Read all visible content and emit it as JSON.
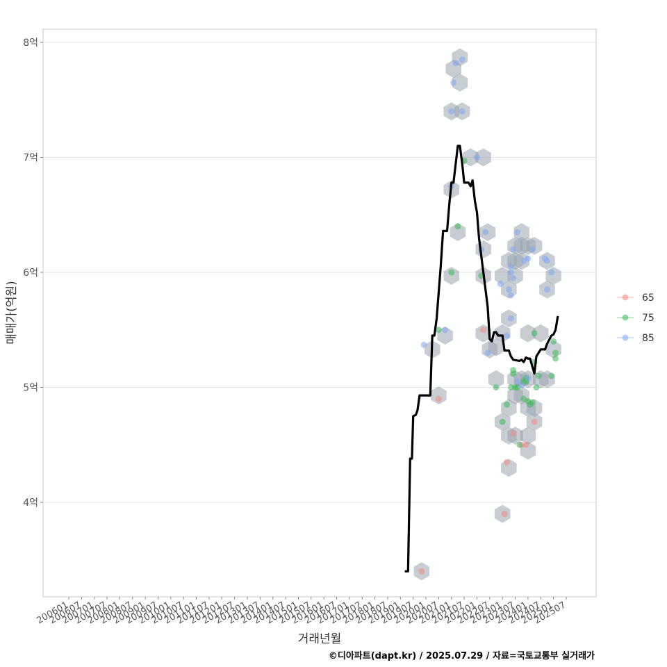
{
  "chart_data": {
    "type": "scatter",
    "title": "",
    "xlabel": "거래년월",
    "ylabel": "매매가(억원)",
    "caption": "©디아파트(dapt.kr) / 2025.07.29 / 자료=국토교통부 실거래가",
    "x_range": [
      "2006-01",
      "2025-07"
    ],
    "x_ticks": [
      "200601",
      "200607",
      "200701",
      "200707",
      "200801",
      "200807",
      "200901",
      "200907",
      "201001",
      "201007",
      "201101",
      "201107",
      "201201",
      "201207",
      "201301",
      "201307",
      "201401",
      "201407",
      "201501",
      "201507",
      "201601",
      "201607",
      "201701",
      "201707",
      "201801",
      "201807",
      "201901",
      "201907",
      "202001",
      "202007",
      "202101",
      "202107",
      "202201",
      "202207",
      "202301",
      "202307",
      "202401",
      "202407",
      "202501",
      "202507"
    ],
    "y_range": [
      3.2,
      8.1
    ],
    "y_ticks": [
      {
        "value": 4,
        "label": "4억"
      },
      {
        "value": 5,
        "label": "5억"
      },
      {
        "value": 6,
        "label": "6억"
      },
      {
        "value": 7,
        "label": "7억"
      },
      {
        "value": 8,
        "label": "8억"
      }
    ],
    "grid": true,
    "legend_position": "right",
    "colors": {
      "65": "#f08a84",
      "75": "#3cb95a",
      "85": "#7fa8f0",
      "trend": "#000000",
      "hex": "#9aa4ae"
    },
    "series": [
      {
        "name": "65",
        "points": [
          [
            2019.83,
            3.4
          ],
          [
            2020.5,
            4.9
          ],
          [
            2022.25,
            5.5
          ],
          [
            2023.17,
            4.35
          ],
          [
            2023.42,
            4.6
          ],
          [
            2023.75,
            4.5
          ],
          [
            2023.92,
            4.5
          ],
          [
            2024.25,
            4.7
          ],
          [
            2023.08,
            3.9
          ]
        ]
      },
      {
        "name": "75",
        "points": [
          [
            2020.5,
            5.5
          ],
          [
            2021.0,
            6.0
          ],
          [
            2021.25,
            6.4
          ],
          [
            2021.5,
            6.97
          ],
          [
            2022.17,
            5.97
          ],
          [
            2022.75,
            5.0
          ],
          [
            2023.0,
            4.7
          ],
          [
            2023.17,
            4.85
          ],
          [
            2023.33,
            5.0
          ],
          [
            2023.42,
            5.12
          ],
          [
            2023.5,
            5.0
          ],
          [
            2023.58,
            5.0
          ],
          [
            2023.83,
            5.05
          ],
          [
            2023.92,
            5.05
          ],
          [
            2023.83,
            4.9
          ],
          [
            2024.0,
            4.88
          ],
          [
            2024.08,
            4.85
          ],
          [
            2024.25,
            5.22
          ],
          [
            2024.25,
            5.47
          ],
          [
            2024.33,
            5.0
          ],
          [
            2024.42,
            5.1
          ],
          [
            2024.92,
            5.1
          ],
          [
            2025.0,
            5.4
          ],
          [
            2025.08,
            5.3
          ],
          [
            2025.08,
            5.25
          ],
          [
            2023.42,
            5.15
          ],
          [
            2023.92,
            5.08
          ],
          [
            2023.67,
            4.5
          ],
          [
            2024.17,
            4.87
          ]
        ]
      },
      {
        "name": "85",
        "points": [
          [
            2019.92,
            5.37
          ],
          [
            2020.75,
            5.5
          ],
          [
            2021.0,
            6.75
          ],
          [
            2021.17,
            7.82
          ],
          [
            2021.08,
            7.65
          ],
          [
            2021.42,
            7.85
          ],
          [
            2021.0,
            7.4
          ],
          [
            2021.42,
            7.4
          ],
          [
            2022.0,
            7.0
          ],
          [
            2022.17,
            6.2
          ],
          [
            2022.33,
            6.35
          ],
          [
            2022.42,
            5.3
          ],
          [
            2022.92,
            5.9
          ],
          [
            2023.17,
            5.45
          ],
          [
            2023.25,
            5.85
          ],
          [
            2023.33,
            5.8
          ],
          [
            2023.33,
            5.6
          ],
          [
            2023.33,
            6.05
          ],
          [
            2023.33,
            6.0
          ],
          [
            2023.42,
            5.95
          ],
          [
            2023.42,
            6.2
          ],
          [
            2023.58,
            6.35
          ],
          [
            2023.83,
            6.1
          ],
          [
            2024.0,
            6.12
          ],
          [
            2024.17,
            6.2
          ],
          [
            2024.67,
            6.12
          ],
          [
            2024.75,
            6.1
          ],
          [
            2024.75,
            5.85
          ],
          [
            2024.92,
            6.0
          ],
          [
            2023.58,
            5.05
          ],
          [
            2023.75,
            5.02
          ],
          [
            2024.0,
            5.08
          ]
        ]
      },
      {
        "name": "trend",
        "points": [
          [
            2019.17,
            3.4
          ],
          [
            2019.3,
            3.4
          ],
          [
            2019.38,
            4.38
          ],
          [
            2019.45,
            4.38
          ],
          [
            2019.5,
            4.75
          ],
          [
            2019.6,
            4.76
          ],
          [
            2019.67,
            4.8
          ],
          [
            2019.75,
            4.93
          ],
          [
            2020.17,
            4.93
          ],
          [
            2020.25,
            5.45
          ],
          [
            2020.33,
            5.45
          ],
          [
            2020.42,
            5.6
          ],
          [
            2020.58,
            6.05
          ],
          [
            2020.67,
            6.36
          ],
          [
            2020.83,
            6.36
          ],
          [
            2020.92,
            6.6
          ],
          [
            2021.0,
            6.78
          ],
          [
            2021.08,
            6.78
          ],
          [
            2021.25,
            7.1
          ],
          [
            2021.33,
            7.1
          ],
          [
            2021.42,
            6.95
          ],
          [
            2021.5,
            6.78
          ],
          [
            2021.67,
            6.78
          ],
          [
            2021.75,
            6.75
          ],
          [
            2021.83,
            6.8
          ],
          [
            2021.92,
            6.62
          ],
          [
            2022.0,
            6.52
          ],
          [
            2022.08,
            6.3
          ],
          [
            2022.25,
            6.0
          ],
          [
            2022.42,
            5.7
          ],
          [
            2022.5,
            5.42
          ],
          [
            2022.58,
            5.4
          ],
          [
            2022.67,
            5.48
          ],
          [
            2022.75,
            5.48
          ],
          [
            2022.83,
            5.45
          ],
          [
            2023.0,
            5.45
          ],
          [
            2023.08,
            5.32
          ],
          [
            2023.25,
            5.32
          ],
          [
            2023.33,
            5.27
          ],
          [
            2023.42,
            5.24
          ],
          [
            2023.67,
            5.23
          ],
          [
            2023.75,
            5.24
          ],
          [
            2023.83,
            5.22
          ],
          [
            2023.92,
            5.26
          ],
          [
            2024.0,
            5.25
          ],
          [
            2024.08,
            5.25
          ],
          [
            2024.25,
            5.12
          ],
          [
            2024.33,
            5.27
          ],
          [
            2024.5,
            5.33
          ],
          [
            2024.67,
            5.33
          ],
          [
            2024.75,
            5.38
          ],
          [
            2024.92,
            5.45
          ],
          [
            2025.0,
            5.46
          ],
          [
            2025.08,
            5.5
          ],
          [
            2025.17,
            5.62
          ]
        ]
      }
    ],
    "hexbins": [
      [
        2019.83,
        3.4
      ],
      [
        2020.5,
        4.93
      ],
      [
        2020.25,
        5.33
      ],
      [
        2020.75,
        5.45
      ],
      [
        2021.0,
        5.97
      ],
      [
        2021.0,
        6.72
      ],
      [
        2021.25,
        6.35
      ],
      [
        2021.0,
        7.4
      ],
      [
        2021.42,
        7.4
      ],
      [
        2021.08,
        7.77
      ],
      [
        2021.33,
        7.65
      ],
      [
        2021.33,
        7.87
      ],
      [
        2021.75,
        7.0
      ],
      [
        2022.25,
        7.0
      ],
      [
        2022.42,
        6.35
      ],
      [
        2022.25,
        6.2
      ],
      [
        2022.25,
        5.97
      ],
      [
        2022.25,
        5.47
      ],
      [
        2022.5,
        5.33
      ],
      [
        2022.75,
        5.07
      ],
      [
        2023.0,
        5.97
      ],
      [
        2023.25,
        5.85
      ],
      [
        2023.25,
        6.1
      ],
      [
        2023.5,
        6.1
      ],
      [
        2023.5,
        5.97
      ],
      [
        2023.5,
        6.23
      ],
      [
        2023.75,
        6.35
      ],
      [
        2023.75,
        6.23
      ],
      [
        2023.75,
        6.1
      ],
      [
        2024.0,
        6.23
      ],
      [
        2024.25,
        6.23
      ],
      [
        2023.25,
        5.6
      ],
      [
        2023.0,
        5.47
      ],
      [
        2023.0,
        4.7
      ],
      [
        2023.25,
        4.82
      ],
      [
        2023.25,
        4.58
      ],
      [
        2023.5,
        4.58
      ],
      [
        2023.5,
        4.93
      ],
      [
        2023.5,
        5.07
      ],
      [
        2023.75,
        5.07
      ],
      [
        2023.75,
        4.93
      ],
      [
        2024.0,
        5.07
      ],
      [
        2024.0,
        4.82
      ],
      [
        2024.0,
        4.58
      ],
      [
        2024.25,
        4.7
      ],
      [
        2024.25,
        4.82
      ],
      [
        2024.0,
        4.45
      ],
      [
        2024.0,
        5.47
      ],
      [
        2024.5,
        5.47
      ],
      [
        2024.5,
        5.07
      ],
      [
        2024.75,
        5.07
      ],
      [
        2025.0,
        5.33
      ],
      [
        2024.75,
        5.85
      ],
      [
        2024.75,
        6.1
      ],
      [
        2025.0,
        5.97
      ],
      [
        2023.25,
        4.3
      ],
      [
        2023.0,
        3.9
      ],
      [
        2022.75,
        5.35
      ]
    ]
  },
  "legend": {
    "items": [
      {
        "key": "65",
        "label": "65"
      },
      {
        "key": "75",
        "label": "75"
      },
      {
        "key": "85",
        "label": "85"
      }
    ]
  }
}
